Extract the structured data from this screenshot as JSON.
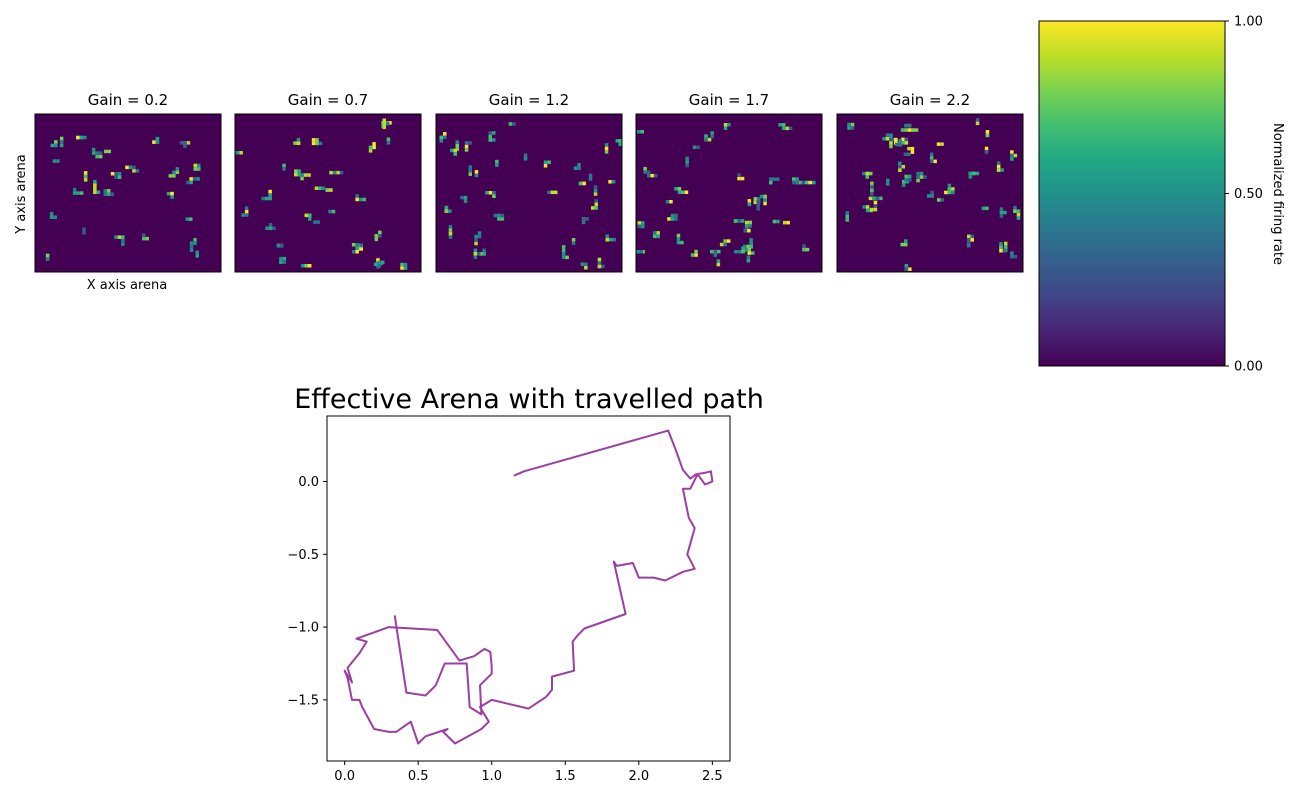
{
  "chart_data": [
    {
      "type": "heatmap",
      "panels": [
        {
          "title": "Gain = 0.2"
        },
        {
          "title": "Gain = 0.7"
        },
        {
          "title": "Gain = 1.2"
        },
        {
          "title": "Gain = 1.7"
        },
        {
          "title": "Gain = 2.2"
        }
      ],
      "xlabel": "X axis arena",
      "ylabel": "Y axis arena",
      "colormap": "viridis",
      "colorbar": {
        "label": "Normalized firing rate",
        "range": [
          0,
          1
        ],
        "ticks": [
          {
            "value": 0,
            "label": "0.00"
          },
          {
            "value": 0.5,
            "label": "0.50"
          },
          {
            "value": 1,
            "label": "1.00"
          }
        ]
      }
    },
    {
      "type": "line",
      "title": "Effective Arena with travelled path",
      "xlim": [
        -0.12,
        2.62
      ],
      "ylim": [
        -1.92,
        0.45
      ],
      "xticks": [
        {
          "value": 0,
          "label": "0.0"
        },
        {
          "value": 0.5,
          "label": "0.5"
        },
        {
          "value": 1,
          "label": "1.0"
        },
        {
          "value": 1.5,
          "label": "1.5"
        },
        {
          "value": 2,
          "label": "2.0"
        },
        {
          "value": 2.5,
          "label": "2.5"
        }
      ],
      "yticks": [
        {
          "value": 0,
          "label": "0.0"
        },
        {
          "value": -0.5,
          "label": "−0.5"
        },
        {
          "value": -1,
          "label": "−1.0"
        },
        {
          "value": -1.5,
          "label": "−1.5"
        }
      ],
      "line_color": "#9b3fa3",
      "path": [
        [
          1.15,
          0.04
        ],
        [
          1.22,
          0.07
        ],
        [
          2.2,
          0.35
        ],
        [
          2.25,
          0.22
        ],
        [
          2.3,
          0.08
        ],
        [
          2.35,
          0.02
        ],
        [
          2.39,
          0.05
        ],
        [
          2.45,
          0.06
        ],
        [
          2.49,
          0.07
        ],
        [
          2.5,
          0.0
        ],
        [
          2.45,
          -0.02
        ],
        [
          2.4,
          0.05
        ],
        [
          2.35,
          -0.05
        ],
        [
          2.3,
          -0.05
        ],
        [
          2.34,
          -0.25
        ],
        [
          2.38,
          -0.32
        ],
        [
          2.33,
          -0.5
        ],
        [
          2.38,
          -0.6
        ],
        [
          2.3,
          -0.62
        ],
        [
          2.18,
          -0.68
        ],
        [
          2.1,
          -0.66
        ],
        [
          2.0,
          -0.66
        ],
        [
          1.96,
          -0.56
        ],
        [
          1.85,
          -0.58
        ],
        [
          1.83,
          -0.55
        ],
        [
          1.91,
          -0.91
        ],
        [
          1.63,
          -1.01
        ],
        [
          1.59,
          -1.05
        ],
        [
          1.55,
          -1.1
        ],
        [
          1.56,
          -1.3
        ],
        [
          1.41,
          -1.34
        ],
        [
          1.41,
          -1.43
        ],
        [
          1.37,
          -1.48
        ],
        [
          1.25,
          -1.56
        ],
        [
          1.0,
          -1.5
        ],
        [
          0.92,
          -1.55
        ],
        [
          0.98,
          -1.65
        ],
        [
          0.93,
          -1.7
        ],
        [
          0.75,
          -1.8
        ],
        [
          0.67,
          -1.72
        ],
        [
          0.7,
          -1.7
        ],
        [
          0.55,
          -1.75
        ],
        [
          0.5,
          -1.8
        ],
        [
          0.45,
          -1.65
        ],
        [
          0.35,
          -1.72
        ],
        [
          0.3,
          -1.72
        ],
        [
          0.2,
          -1.7
        ],
        [
          0.12,
          -1.55
        ],
        [
          0.1,
          -1.5
        ],
        [
          0.05,
          -1.5
        ],
        [
          0.02,
          -1.35
        ],
        [
          0.0,
          -1.3
        ],
        [
          0.05,
          -1.38
        ],
        [
          0.02,
          -1.28
        ],
        [
          0.1,
          -1.18
        ],
        [
          0.15,
          -1.1
        ],
        [
          0.08,
          -1.08
        ],
        [
          0.3,
          -1.0
        ],
        [
          0.63,
          -1.02
        ],
        [
          0.78,
          -1.23
        ],
        [
          0.88,
          -1.2
        ],
        [
          0.95,
          -1.15
        ],
        [
          0.99,
          -1.17
        ],
        [
          1.0,
          -1.27
        ],
        [
          1.0,
          -1.32
        ],
        [
          0.92,
          -1.4
        ],
        [
          0.93,
          -1.6
        ],
        [
          0.85,
          -1.55
        ],
        [
          0.83,
          -1.25
        ],
        [
          0.68,
          -1.25
        ],
        [
          0.62,
          -1.4
        ],
        [
          0.55,
          -1.47
        ],
        [
          0.42,
          -1.45
        ],
        [
          0.34,
          -0.92
        ]
      ]
    }
  ]
}
